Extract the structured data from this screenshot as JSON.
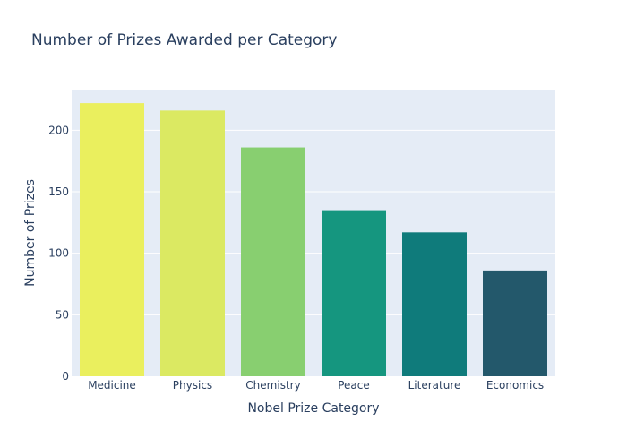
{
  "chart_data": {
    "type": "bar",
    "title": "Number of Prizes Awarded per Category",
    "xlabel": "Nobel Prize Category",
    "ylabel": "Number of Prizes",
    "categories": [
      "Medicine",
      "Physics",
      "Chemistry",
      "Peace",
      "Literature",
      "Economics"
    ],
    "values": [
      222,
      216,
      186,
      135,
      117,
      86
    ],
    "colors": [
      "#eaef5e",
      "#dbe962",
      "#88cf70",
      "#15967f",
      "#0f7b7b",
      "#23586b"
    ],
    "yticks": [
      0,
      50,
      100,
      150,
      200
    ],
    "ylim": [
      0,
      233
    ],
    "grid": true,
    "legend": "none",
    "plot_bg": "#e5ecf6"
  }
}
